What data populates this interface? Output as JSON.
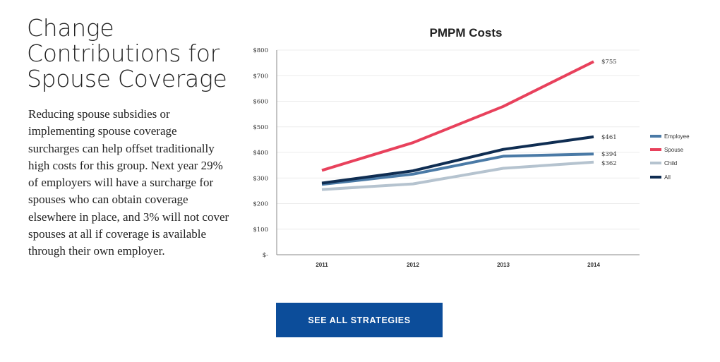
{
  "heading": {
    "lines": [
      "Change",
      "Contributions for",
      "Spouse Coverage"
    ]
  },
  "body": {
    "lines": [
      "Reducing spouse subsidies or",
      "implementing spouse coverage",
      "surcharges can help offset traditionally",
      "high costs for this group. Next year 29%",
      "of employers will have a surcharge for",
      "spouses who can obtain coverage",
      "elsewhere in place, and 3% will not cover",
      "spouses at all if coverage is available",
      "through their own employer."
    ]
  },
  "cta": {
    "label": "SEE ALL STRATEGIES"
  },
  "chart_data": {
    "type": "line",
    "title": "PMPM Costs",
    "xlabel": "",
    "ylabel": "",
    "categories": [
      "2011",
      "2012",
      "2013",
      "2014"
    ],
    "ylim": [
      0,
      800
    ],
    "y_ticks": [
      {
        "value": 0,
        "label": "$-"
      },
      {
        "value": 100,
        "label": "$100"
      },
      {
        "value": 200,
        "label": "$200"
      },
      {
        "value": 300,
        "label": "$300"
      },
      {
        "value": 400,
        "label": "$400"
      },
      {
        "value": 500,
        "label": "$500"
      },
      {
        "value": 600,
        "label": "$600"
      },
      {
        "value": 700,
        "label": "$700"
      },
      {
        "value": 800,
        "label": "$800"
      }
    ],
    "grid": true,
    "legend_position": "right",
    "series": [
      {
        "name": "Employee",
        "color": "#4a7aa6",
        "values": [
          275,
          315,
          385,
          394
        ],
        "end_label": "$394"
      },
      {
        "name": "Spouse",
        "color": "#e8415c",
        "values": [
          330,
          438,
          580,
          755
        ],
        "end_label": "$755"
      },
      {
        "name": "Child",
        "color": "#b5c3cf",
        "values": [
          255,
          277,
          338,
          362
        ],
        "end_label": "$362"
      },
      {
        "name": "All",
        "color": "#0f2d52",
        "values": [
          280,
          328,
          412,
          461
        ],
        "end_label": "$461"
      }
    ]
  }
}
